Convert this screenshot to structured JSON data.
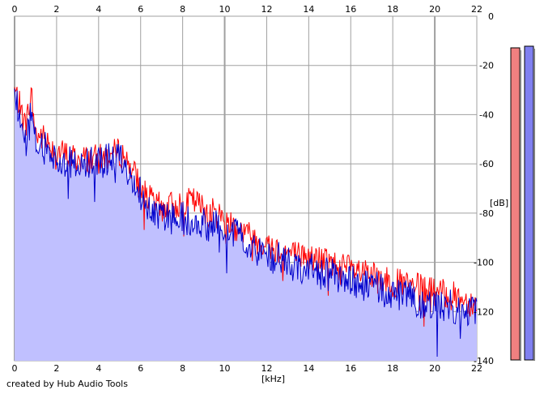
{
  "credit": "created by Hub Audio Tools",
  "chart_data": {
    "type": "area",
    "xlabel": "[kHz]",
    "ylabel": "[dB]",
    "xlim": [
      0,
      22
    ],
    "ylim": [
      -140,
      0
    ],
    "x_ticks": [
      0,
      2,
      4,
      6,
      8,
      10,
      12,
      14,
      16,
      18,
      20,
      22
    ],
    "y_ticks": [
      0,
      -20,
      -40,
      -60,
      -80,
      -100,
      -120,
      -140
    ],
    "grid": true,
    "colors": {
      "red": "#ff0000",
      "blue": "#0000cc",
      "fill": "#c0c0ff",
      "red_bar": "#f08080",
      "blue_bar": "#8080f0"
    },
    "series": [
      {
        "x": [
          0,
          0.3,
          0.5,
          0.8,
          1.0,
          1.5,
          2.0,
          3.0,
          4.0,
          5.0,
          5.5,
          6.0,
          6.5,
          7.0,
          8.0,
          8.5,
          9.0,
          9.5,
          10.0,
          11.0,
          12.0,
          13.0,
          14.0,
          15.0,
          16.0,
          17.0,
          18.0,
          19.0,
          20.0,
          21.0,
          22.0
        ],
        "values": [
          -30,
          -38,
          -45,
          -32,
          -48,
          -50,
          -55,
          -58,
          -58,
          -55,
          -60,
          -70,
          -75,
          -78,
          -76,
          -75,
          -78,
          -80,
          -82,
          -88,
          -93,
          -96,
          -98,
          -100,
          -103,
          -106,
          -108,
          -110,
          -112,
          -114,
          -117
        ]
      },
      {
        "x": [
          0,
          0.3,
          0.5,
          0.8,
          1.0,
          1.5,
          2.0,
          3.0,
          4.0,
          5.0,
          5.5,
          6.0,
          6.5,
          7.0,
          8.0,
          8.5,
          9.0,
          9.5,
          10.0,
          11.0,
          12.0,
          13.0,
          14.0,
          15.0,
          16.0,
          17.0,
          18.0,
          19.0,
          20.0,
          21.0,
          22.0
        ],
        "values": [
          -32,
          -42,
          -52,
          -40,
          -52,
          -54,
          -58,
          -60,
          -60,
          -57,
          -63,
          -72,
          -78,
          -82,
          -82,
          -83,
          -85,
          -85,
          -85,
          -92,
          -97,
          -100,
          -103,
          -105,
          -108,
          -110,
          -113,
          -115,
          -117,
          -118,
          -120
        ]
      }
    ]
  }
}
